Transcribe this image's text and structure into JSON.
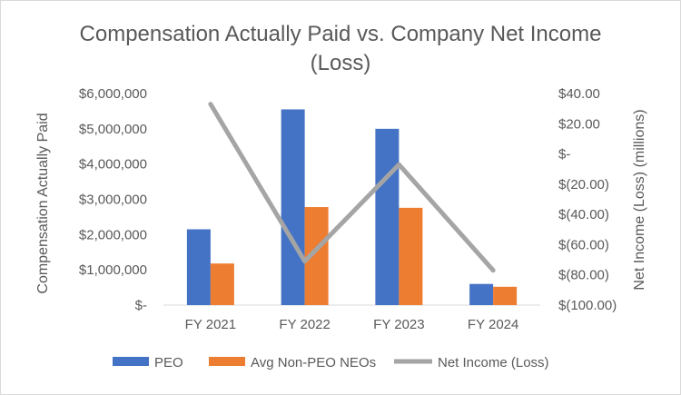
{
  "chart_data": {
    "type": "bar",
    "title": "Compensation Actually Paid vs. Company Net Income (Loss)",
    "categories": [
      "FY 2021",
      "FY 2022",
      "FY 2023",
      "FY 2024"
    ],
    "ylabel": "Compensation Actually Paid",
    "y2label": "Net Income (Loss) (millions)",
    "ylim": [
      0,
      6000000
    ],
    "y2lim": [
      -100,
      40
    ],
    "y_ticks": [
      "$-",
      "$1,000,000",
      "$2,000,000",
      "$3,000,000",
      "$4,000,000",
      "$5,000,000",
      "$6,000,000"
    ],
    "y2_ticks": [
      "$(100.00)",
      "$(80.00)",
      "$(60.00)",
      "$(40.00)",
      "$(20.00)",
      "$-",
      "$20.00",
      "$40.00"
    ],
    "series": [
      {
        "name": "PEO",
        "type": "bar",
        "axis": "left",
        "color": "#4472c4",
        "values": [
          2150000,
          5550000,
          5000000,
          600000
        ]
      },
      {
        "name": "Avg Non-PEO NEOs",
        "type": "bar",
        "axis": "left",
        "color": "#ed7d31",
        "values": [
          1180000,
          2780000,
          2760000,
          520000
        ]
      },
      {
        "name": "Net Income (Loss)",
        "type": "line",
        "axis": "right",
        "color": "#a5a5a5",
        "values": [
          33,
          -71,
          -7,
          -77
        ]
      }
    ],
    "grid": false,
    "legend_position": "bottom"
  }
}
